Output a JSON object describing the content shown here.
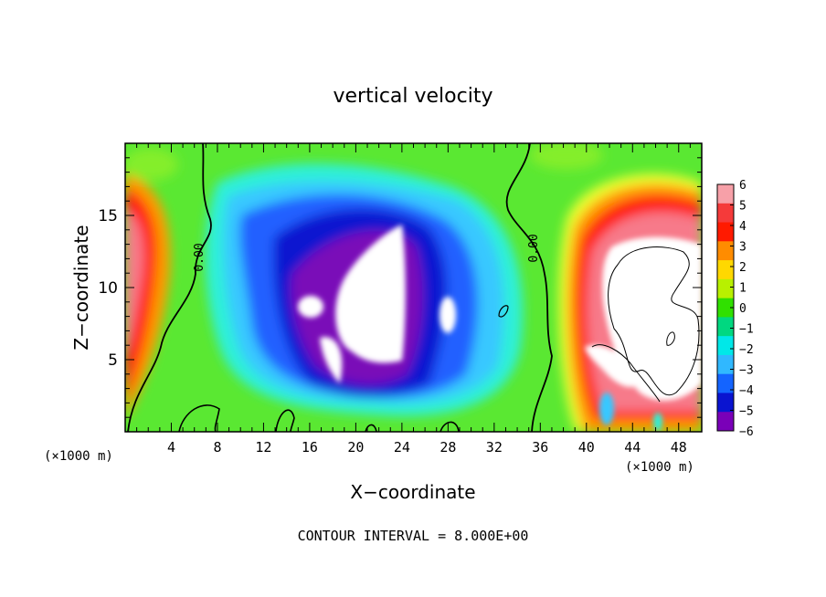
{
  "chart_data": {
    "type": "heatmap",
    "title": "vertical velocity",
    "xlabel": "X−coordinate",
    "ylabel": "Z−coordinate",
    "x_units_left": "(×1000 m)",
    "x_units_right": "(×1000 m)",
    "xlim": [
      0,
      50
    ],
    "ylim": [
      0,
      20
    ],
    "x_ticks": [
      4,
      8,
      12,
      16,
      20,
      24,
      28,
      32,
      36,
      40,
      44,
      48
    ],
    "y_ticks": [
      5,
      10,
      15
    ],
    "contour_interval_text": "CONTOUR INTERVAL = 8.000E+00",
    "contour_labels": [
      "0.00",
      "0.00"
    ],
    "colorbar": {
      "levels": [
        6,
        5,
        4,
        3,
        2,
        1,
        0,
        -1,
        -2,
        -3,
        -4,
        -5,
        -6
      ],
      "labels": [
        "6",
        "5",
        "4",
        "3",
        "2",
        "1",
        "0",
        "−1",
        "−2",
        "−3",
        "−4",
        "−5",
        "−6"
      ],
      "colors": [
        "#f7a0a8",
        "#f53a3a",
        "#ff1a00",
        "#ff8c00",
        "#ffd800",
        "#b8f000",
        "#30e000",
        "#00d880",
        "#00e8e8",
        "#30b8ff",
        "#1464ff",
        "#0a14d0",
        "#7a00b8"
      ]
    },
    "field_colors": {
      "background": "#5ae832",
      "green_light": "#84ee2a",
      "cyan": "#2ef0d8",
      "sky": "#38c8ff",
      "blue": "#2060ff",
      "dark_blue": "#1018d0",
      "purple": "#7a10b8",
      "white": "#ffffff",
      "yellow": "#f0ff30",
      "orange": "#ff9a00",
      "red": "#ff1a10",
      "pink": "#f77a8a"
    }
  }
}
